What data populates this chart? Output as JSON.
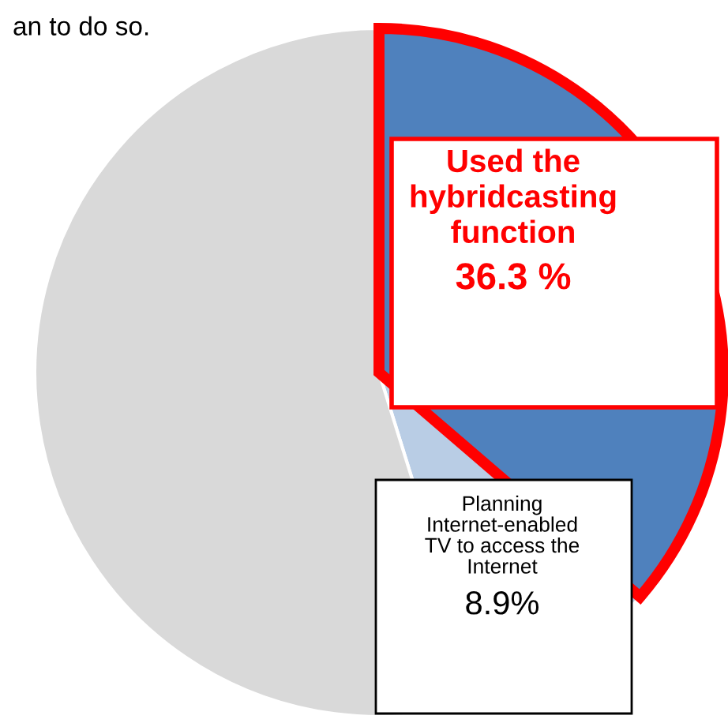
{
  "chart_data": {
    "type": "pie",
    "categories": [
      "Used the\nhybridcasting\nfunction",
      "Planning\nInternet-enabled\nTV to access the\nInternet",
      null
    ],
    "values": [
      36.3,
      8.9,
      54.8
    ],
    "colors": [
      "#4f81bd",
      "#b9cde5",
      "#d9d9d9"
    ],
    "value_labels": [
      "36.3 %",
      "8.9%",
      null
    ],
    "annotations": [
      "an to do so."
    ]
  }
}
